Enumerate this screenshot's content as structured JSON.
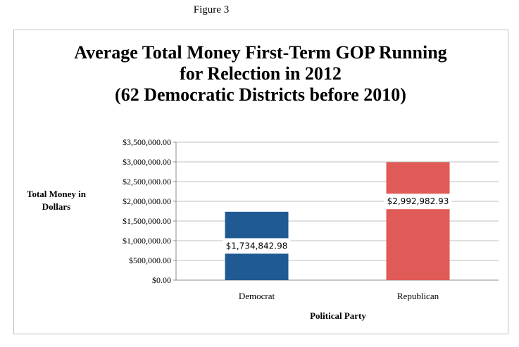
{
  "figure_label": "Figure 3",
  "chart_data": {
    "type": "bar",
    "title": "Average Total Money First-Term GOP Running for Relection in 2012 (62 Democratic Districts before 2010)",
    "title_lines": [
      "Average Total Money First-Term GOP Running",
      "for Relection in 2012",
      "(62 Democratic Districts before 2010)"
    ],
    "xlabel": "Political Party",
    "ylabel_lines": [
      "Total Money in",
      "Dollars"
    ],
    "categories": [
      "Democrat",
      "Republican"
    ],
    "values": [
      1734842.98,
      2992982.93
    ],
    "data_labels": [
      "$1,734,842.98",
      "$2,992,982.93"
    ],
    "colors": [
      "#1f5a93",
      "#e05a57"
    ],
    "ylim": [
      0,
      3500000
    ],
    "yticks": [
      0,
      500000,
      1000000,
      1500000,
      2000000,
      2500000,
      3000000,
      3500000
    ],
    "ytick_labels": [
      "$0.00",
      "$500,000.00",
      "$1,000,000.00",
      "$1,500,000.00",
      "$2,000,000.00",
      "$2,500,000.00",
      "$3,000,000.00",
      "$3,500,000.00"
    ],
    "grid": true,
    "legend": "none"
  }
}
